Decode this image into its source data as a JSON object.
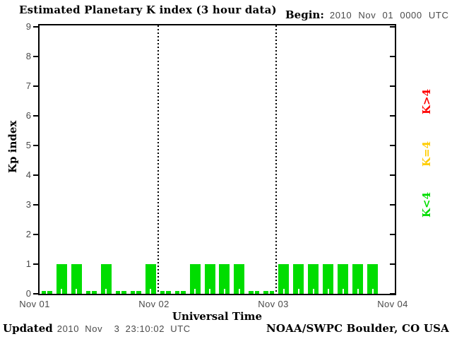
{
  "header": {
    "title": "Estimated Planetary K index (3 hour data)",
    "begin_label": "Begin:",
    "begin_value": "2010 Nov 01 0000 UTC"
  },
  "chart_data": {
    "type": "bar",
    "title": "Estimated Planetary K index (3 hour data)",
    "xlabel": "Universal Time",
    "ylabel": "Kp index",
    "ylim": [
      0,
      9
    ],
    "yticks": [
      0,
      1,
      2,
      3,
      4,
      5,
      6,
      7,
      8,
      9
    ],
    "x_day_labels": [
      "Nov 01",
      "Nov 02",
      "Nov 03",
      "Nov 04"
    ],
    "interval_hours": 3,
    "bar_color": "#00dd00",
    "grid": "dotted vertical lines at day boundaries",
    "days": [
      {
        "date": "Nov 01",
        "values": [
          0,
          1,
          1,
          0,
          1,
          0,
          0,
          1
        ]
      },
      {
        "date": "Nov 02",
        "values": [
          0,
          0,
          1,
          1,
          1,
          1,
          0,
          0
        ]
      },
      {
        "date": "Nov 03",
        "values": [
          1,
          1,
          1,
          1,
          1,
          1,
          1
        ]
      }
    ],
    "legend": [
      {
        "label": "K>4",
        "color": "#ff0000"
      },
      {
        "label": "K=4",
        "color": "#ffcc00"
      },
      {
        "label": "K<4",
        "color": "#00dd00"
      }
    ]
  },
  "footer": {
    "updated_label": "Updated",
    "updated_value": "2010 Nov  3 23:10:02 UTC",
    "credit": "NOAA/SWPC Boulder, CO USA"
  }
}
